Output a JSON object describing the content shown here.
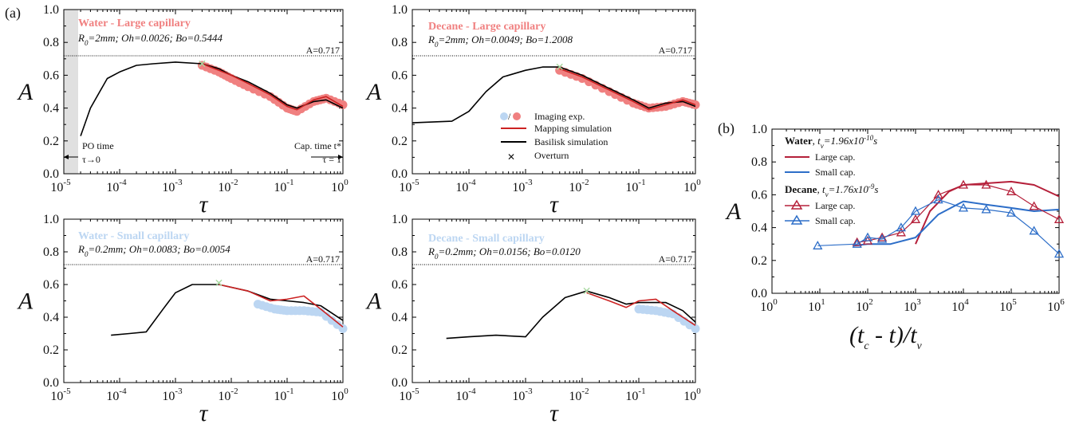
{
  "panel_labels": {
    "a": "(a)",
    "b": "(b)"
  },
  "colors": {
    "water_large": "#f08080",
    "water_small": "#bcd6f2",
    "mapping": "#cc2222",
    "basilisk": "#000000",
    "overturn": "#a8d8a0",
    "dark_red": "#b5203a",
    "blue": "#2d6ec8"
  },
  "common": {
    "ref_line_label": "A=0.717",
    "ylabel": "A",
    "xlabel": "τ",
    "ytick_labels": [
      "0.0",
      "0.2",
      "0.4",
      "0.6",
      "0.8",
      "1.0"
    ],
    "xtick_bases": [
      "10",
      "10",
      "10",
      "10",
      "10",
      "10"
    ],
    "xtick_exps": [
      "-5",
      "-4",
      "-3",
      "-2",
      "-1",
      "0"
    ]
  },
  "annot": {
    "po_time": "PO time",
    "po_arrow": "τ→0",
    "cap_time": "Cap. time t*",
    "cap_eq": "τ = 1"
  },
  "legend_a": {
    "imaging": "Imaging exp.",
    "mapping": "Mapping simulation",
    "basilisk": "Basilisk simulation",
    "overturn": "Overturn"
  },
  "panels": {
    "p1": {
      "title": "Water - Large capillary",
      "sub_r0": "0",
      "sub_rest": "=2mm; Oh=0.0026; Bo=0.5444"
    },
    "p2": {
      "title": "Decane - Large capillary",
      "sub_r0": "0",
      "sub_rest": "=2mm; Oh=0.0049; Bo=1.2008"
    },
    "p3": {
      "title": "Water - Small capillary",
      "sub_r0": "0",
      "sub_rest": "=0.2mm; Oh=0.0083; Bo=0.0054"
    },
    "p4": {
      "title": "Decane - Small capillary",
      "sub_r0": "0",
      "sub_rest": "=0.2mm; Oh=0.0156; Bo=0.0120"
    }
  },
  "panel_b": {
    "water_label": "Water",
    "water_tv_pre": ", t",
    "water_tv_sub": "ν",
    "water_tv_val": "=1.96x10",
    "water_tv_exp": "-10",
    "water_tv_unit": "s",
    "decane_label": "Decane",
    "decane_tv_pre": ", t",
    "decane_tv_sub": "ν",
    "decane_tv_val": "=1.76x10",
    "decane_tv_exp": "-9",
    "decane_tv_unit": "s",
    "large_cap": "Large cap.",
    "small_cap": "Small cap.",
    "large_cap2": "Large cap.",
    "small_cap2": "Small cap.",
    "xlabel_main": "(t",
    "xlabel_c": "c",
    "xlabel_mid": " - t)/t",
    "xlabel_nu": "ν",
    "ylabel": "A",
    "ytick_labels": [
      "0.0",
      "0.2",
      "0.4",
      "0.6",
      "0.8",
      "1.0"
    ],
    "xtick_exps": [
      "0",
      "1",
      "2",
      "3",
      "4",
      "5",
      "6"
    ]
  },
  "chart_data": [
    {
      "type": "line",
      "title": "Water - Large capillary",
      "xlabel": "τ",
      "ylabel": "A",
      "xscale": "log",
      "xlim": [
        1e-05,
        1
      ],
      "ylim": [
        0,
        1
      ],
      "reference_line": 0.717,
      "series": [
        {
          "name": "Basilisk simulation",
          "x": [
            2e-05,
            3e-05,
            6e-05,
            0.0001,
            0.0002,
            0.0004,
            0.001,
            0.003,
            0.006,
            0.01,
            0.02,
            0.05,
            0.1,
            0.15,
            0.3,
            0.5,
            1
          ],
          "y": [
            0.23,
            0.4,
            0.58,
            0.62,
            0.66,
            0.67,
            0.68,
            0.67,
            0.64,
            0.6,
            0.56,
            0.49,
            0.42,
            0.4,
            0.44,
            0.45,
            0.4
          ]
        },
        {
          "name": "Mapping simulation",
          "x": [
            0.003,
            0.006,
            0.01,
            0.02,
            0.05,
            0.1,
            0.15,
            0.3,
            0.5,
            1
          ],
          "y": [
            0.67,
            0.63,
            0.6,
            0.55,
            0.48,
            0.41,
            0.39,
            0.45,
            0.47,
            0.41
          ]
        },
        {
          "name": "Imaging exp.",
          "x": [
            0.003,
            0.006,
            0.01,
            0.02,
            0.05,
            0.1,
            0.15,
            0.3,
            0.5,
            1
          ],
          "y": [
            0.66,
            0.62,
            0.58,
            0.53,
            0.47,
            0.4,
            0.38,
            0.44,
            0.46,
            0.42
          ]
        }
      ],
      "overturn": {
        "x": 0.003,
        "y": 0.67
      }
    },
    {
      "type": "line",
      "title": "Decane - Large capillary",
      "xlabel": "τ",
      "ylabel": "A",
      "xscale": "log",
      "xlim": [
        1e-05,
        1
      ],
      "ylim": [
        0,
        1
      ],
      "reference_line": 0.717,
      "series": [
        {
          "name": "Basilisk simulation",
          "x": [
            1e-05,
            5e-05,
            0.0001,
            0.0002,
            0.0004,
            0.001,
            0.002,
            0.004,
            0.01,
            0.03,
            0.08,
            0.15,
            0.3,
            0.6,
            1
          ],
          "y": [
            0.31,
            0.32,
            0.38,
            0.5,
            0.59,
            0.63,
            0.65,
            0.65,
            0.6,
            0.52,
            0.45,
            0.4,
            0.43,
            0.44,
            0.41
          ]
        },
        {
          "name": "Mapping simulation",
          "x": [
            0.004,
            0.01,
            0.03,
            0.08,
            0.15,
            0.3,
            0.6,
            1
          ],
          "y": [
            0.64,
            0.59,
            0.51,
            0.44,
            0.39,
            0.42,
            0.45,
            0.42
          ]
        },
        {
          "name": "Imaging exp.",
          "x": [
            0.004,
            0.01,
            0.03,
            0.08,
            0.15,
            0.3,
            0.6,
            1
          ],
          "y": [
            0.63,
            0.58,
            0.5,
            0.43,
            0.4,
            0.41,
            0.44,
            0.42
          ]
        }
      ],
      "overturn": {
        "x": 0.004,
        "y": 0.65
      }
    },
    {
      "type": "line",
      "title": "Water - Small capillary",
      "xlabel": "τ",
      "ylabel": "A",
      "xscale": "log",
      "xlim": [
        1e-05,
        1
      ],
      "ylim": [
        0,
        1
      ],
      "reference_line": 0.717,
      "series": [
        {
          "name": "Basilisk simulation",
          "x": [
            7e-05,
            0.00015,
            0.0003,
            0.0006,
            0.001,
            0.002,
            0.006,
            0.02,
            0.05,
            0.1,
            0.2,
            0.4,
            1
          ],
          "y": [
            0.29,
            0.3,
            0.31,
            0.45,
            0.55,
            0.6,
            0.6,
            0.56,
            0.51,
            0.5,
            0.49,
            0.47,
            0.38
          ]
        },
        {
          "name": "Mapping simulation",
          "x": [
            0.006,
            0.02,
            0.05,
            0.1,
            0.2,
            0.4,
            1
          ],
          "y": [
            0.6,
            0.56,
            0.5,
            0.51,
            0.53,
            0.45,
            0.34
          ]
        },
        {
          "name": "Imaging exp.",
          "x": [
            0.03,
            0.06,
            0.1,
            0.2,
            0.4,
            1
          ],
          "y": [
            0.48,
            0.45,
            0.44,
            0.44,
            0.43,
            0.33
          ]
        }
      ],
      "overturn": {
        "x": 0.006,
        "y": 0.61
      }
    },
    {
      "type": "line",
      "title": "Decane - Small capillary",
      "xlabel": "τ",
      "ylabel": "A",
      "xscale": "log",
      "xlim": [
        1e-05,
        1
      ],
      "ylim": [
        0,
        1
      ],
      "reference_line": 0.717,
      "series": [
        {
          "name": "Basilisk simulation",
          "x": [
            4e-05,
            0.0001,
            0.0003,
            0.001,
            0.002,
            0.005,
            0.012,
            0.03,
            0.06,
            0.1,
            0.3,
            0.6,
            1
          ],
          "y": [
            0.27,
            0.28,
            0.29,
            0.28,
            0.4,
            0.52,
            0.56,
            0.52,
            0.48,
            0.49,
            0.49,
            0.44,
            0.37
          ]
        },
        {
          "name": "Mapping simulation",
          "x": [
            0.012,
            0.03,
            0.06,
            0.1,
            0.2,
            0.4,
            1
          ],
          "y": [
            0.55,
            0.5,
            0.46,
            0.5,
            0.51,
            0.44,
            0.35
          ]
        },
        {
          "name": "Imaging exp.",
          "x": [
            0.1,
            0.2,
            0.4,
            1
          ],
          "y": [
            0.45,
            0.44,
            0.42,
            0.33
          ]
        }
      ],
      "overturn": {
        "x": 0.012,
        "y": 0.56
      }
    },
    {
      "type": "line",
      "xlabel": "(t_c - t)/t_ν",
      "ylabel": "A",
      "xscale": "log",
      "xlim": [
        1,
        1000000.0
      ],
      "ylim": [
        0,
        1
      ],
      "series": [
        {
          "name": "Water Large cap.",
          "x": [
            1000,
            2000,
            5000,
            10000.0,
            30000.0,
            100000.0,
            300000.0,
            1000000.0
          ],
          "y": [
            0.3,
            0.5,
            0.62,
            0.66,
            0.67,
            0.68,
            0.66,
            0.59
          ]
        },
        {
          "name": "Water Small cap.",
          "x": [
            50,
            100,
            300,
            1000,
            3000,
            10000.0,
            30000.0,
            100000.0,
            300000.0,
            1000000.0
          ],
          "y": [
            0.29,
            0.3,
            0.3,
            0.34,
            0.48,
            0.56,
            0.54,
            0.52,
            0.5,
            0.51
          ]
        },
        {
          "name": "Decane Large cap.",
          "x": [
            60,
            100,
            200,
            500,
            1000,
            3000,
            10000.0,
            30000.0,
            100000.0,
            300000.0,
            1000000.0
          ],
          "y": [
            0.31,
            0.32,
            0.34,
            0.37,
            0.45,
            0.6,
            0.66,
            0.66,
            0.62,
            0.53,
            0.45
          ]
        },
        {
          "name": "Decane Small cap.",
          "x": [
            9,
            60,
            100,
            200,
            500,
            1000,
            3000,
            10000.0,
            30000.0,
            100000.0,
            300000.0,
            1000000.0
          ],
          "y": [
            0.29,
            0.3,
            0.34,
            0.33,
            0.4,
            0.5,
            0.57,
            0.52,
            0.51,
            0.49,
            0.38,
            0.24
          ]
        }
      ]
    }
  ]
}
